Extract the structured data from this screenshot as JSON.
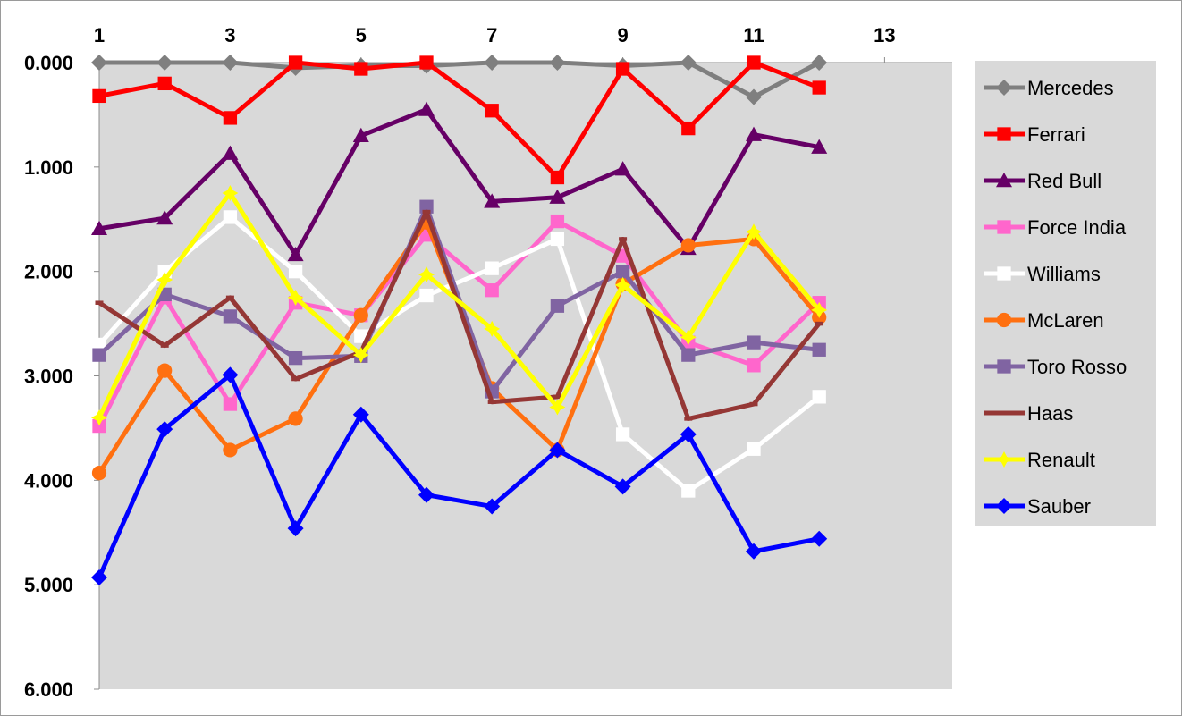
{
  "chart_data": {
    "type": "line",
    "title": "",
    "xlabel": "",
    "ylabel": "",
    "x_axis_position": "top",
    "y_axis_reversed": true,
    "xlim": [
      1,
      14
    ],
    "ylim": [
      0,
      6
    ],
    "x_ticks": [
      1,
      3,
      5,
      7,
      9,
      11,
      13
    ],
    "x_tick_labels": [
      "1",
      "3",
      "5",
      "7",
      "9",
      "11",
      "13"
    ],
    "y_ticks": [
      0,
      1,
      2,
      3,
      4,
      5,
      6
    ],
    "y_tick_labels": [
      "0.000",
      "1.000",
      "2.000",
      "3.000",
      "4.000",
      "5.000",
      "6.000"
    ],
    "grid": false,
    "plot_background": "#d9d9d9",
    "legend_position": "right",
    "x": [
      1,
      2,
      3,
      4,
      5,
      6,
      7,
      8,
      9,
      10,
      11,
      12
    ],
    "series": [
      {
        "name": "Mercedes",
        "color": "#7f7f7f",
        "marker": "diamond",
        "values": [
          0.0,
          0.0,
          0.0,
          0.05,
          0.03,
          0.03,
          0.0,
          0.0,
          0.03,
          0.0,
          0.33,
          0.0
        ]
      },
      {
        "name": "Ferrari",
        "color": "#ff0000",
        "marker": "square",
        "values": [
          0.32,
          0.2,
          0.53,
          0.0,
          0.06,
          0.0,
          0.46,
          1.1,
          0.06,
          0.63,
          0.0,
          0.24
        ]
      },
      {
        "name": "Red Bull",
        "color": "#660066",
        "marker": "triangle",
        "values": [
          1.59,
          1.49,
          0.87,
          1.84,
          0.7,
          0.45,
          1.33,
          1.29,
          1.02,
          1.78,
          0.69,
          0.81
        ]
      },
      {
        "name": "Force India",
        "color": "#ff66cc",
        "marker": "square",
        "values": [
          3.48,
          2.25,
          3.27,
          2.3,
          2.42,
          1.65,
          2.18,
          1.52,
          1.85,
          2.68,
          2.9,
          2.3
        ]
      },
      {
        "name": "Williams",
        "color": "#ffffff",
        "marker": "square",
        "values": [
          2.7,
          2.0,
          1.48,
          2.0,
          2.62,
          2.23,
          1.97,
          1.69,
          3.56,
          4.1,
          3.7,
          3.2
        ]
      },
      {
        "name": "McLaren",
        "color": "#ff7010",
        "marker": "circle",
        "values": [
          3.93,
          2.95,
          3.71,
          3.41,
          2.42,
          1.53,
          3.12,
          3.71,
          2.12,
          1.75,
          1.69,
          2.44
        ]
      },
      {
        "name": "Toro Rosso",
        "color": "#8064a2",
        "marker": "square",
        "values": [
          2.8,
          2.22,
          2.43,
          2.83,
          2.81,
          1.38,
          3.15,
          2.33,
          2.0,
          2.8,
          2.68,
          2.75
        ]
      },
      {
        "name": "Haas",
        "color": "#953735",
        "marker": "dash",
        "values": [
          2.3,
          2.71,
          2.25,
          3.03,
          2.77,
          1.43,
          3.25,
          3.2,
          1.69,
          3.41,
          3.27,
          2.5
        ]
      },
      {
        "name": "Renault",
        "color": "#ffff00",
        "marker": "star",
        "values": [
          3.4,
          2.08,
          1.25,
          2.25,
          2.8,
          2.03,
          2.55,
          3.3,
          2.13,
          2.63,
          1.62,
          2.37
        ]
      },
      {
        "name": "Sauber",
        "color": "#0000ff",
        "marker": "diamond",
        "values": [
          4.93,
          3.51,
          2.99,
          4.46,
          3.37,
          4.14,
          4.25,
          3.71,
          4.06,
          3.56,
          4.68,
          4.56
        ]
      }
    ]
  }
}
